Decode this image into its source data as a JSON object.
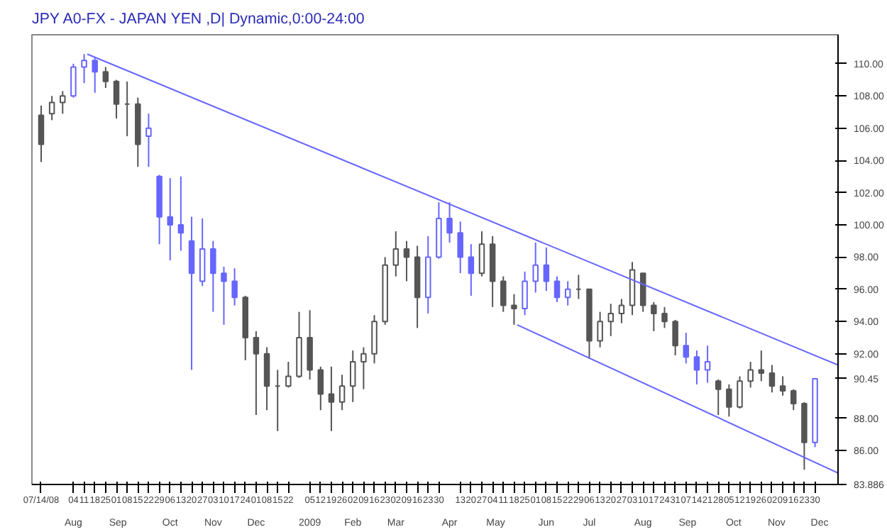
{
  "chart_data": {
    "type": "candlestick",
    "title": "JPY A0-FX - JAPAN YEN ,D| Dynamic,0:00-24:00",
    "x": [
      "2008-07-14",
      "2008-07-21",
      "2008-07-28",
      "2008-08-04",
      "2008-08-11",
      "2008-08-18",
      "2008-08-25",
      "2008-09-01",
      "2008-09-08",
      "2008-09-15",
      "2008-09-22",
      "2008-09-29",
      "2008-10-06",
      "2008-10-13",
      "2008-10-20",
      "2008-10-27",
      "2008-11-03",
      "2008-11-10",
      "2008-11-17",
      "2008-11-24",
      "2008-12-01",
      "2008-12-08",
      "2008-12-15",
      "2008-12-22",
      "2008-12-29",
      "2009-01-05",
      "2009-01-12",
      "2009-01-19",
      "2009-01-26",
      "2009-02-02",
      "2009-02-09",
      "2009-02-16",
      "2009-02-23",
      "2009-03-02",
      "2009-03-09",
      "2009-03-16",
      "2009-03-23",
      "2009-03-30",
      "2009-04-06",
      "2009-04-13",
      "2009-04-20",
      "2009-04-27",
      "2009-05-04",
      "2009-05-11",
      "2009-05-18",
      "2009-05-25",
      "2009-06-01",
      "2009-06-08",
      "2009-06-15",
      "2009-06-22",
      "2009-06-29",
      "2009-07-06",
      "2009-07-13",
      "2009-07-20",
      "2009-07-27",
      "2009-08-03",
      "2009-08-10",
      "2009-08-17",
      "2009-08-24",
      "2009-08-31",
      "2009-09-07",
      "2009-09-14",
      "2009-09-21",
      "2009-09-28",
      "2009-10-05",
      "2009-10-12",
      "2009-10-19",
      "2009-10-26",
      "2009-11-02",
      "2009-11-09",
      "2009-11-16",
      "2009-11-23",
      "2009-11-30"
    ],
    "ohlc": [
      [
        106.8,
        107.4,
        103.9,
        105.0
      ],
      [
        106.9,
        108.0,
        106.5,
        107.6
      ],
      [
        107.6,
        108.3,
        106.9,
        108.0
      ],
      [
        108.0,
        110.0,
        107.9,
        109.8
      ],
      [
        109.8,
        110.6,
        108.8,
        110.2
      ],
      [
        110.2,
        110.4,
        108.2,
        109.5
      ],
      [
        109.5,
        109.8,
        108.5,
        108.9
      ],
      [
        108.9,
        109.0,
        106.6,
        107.5
      ],
      [
        107.5,
        108.9,
        105.5,
        107.5
      ],
      [
        107.5,
        107.9,
        103.6,
        105.0
      ],
      [
        105.5,
        106.9,
        103.6,
        106.0
      ],
      [
        103.0,
        103.1,
        98.8,
        100.5
      ],
      [
        100.5,
        102.9,
        97.8,
        100.0
      ],
      [
        100.0,
        103.0,
        98.4,
        99.5
      ],
      [
        99.0,
        100.5,
        91.0,
        97.0
      ],
      [
        96.5,
        100.4,
        96.2,
        98.5
      ],
      [
        98.5,
        99.0,
        94.6,
        97.0
      ],
      [
        97.0,
        97.4,
        93.8,
        96.5
      ],
      [
        96.5,
        97.3,
        95.0,
        95.5
      ],
      [
        95.5,
        95.6,
        91.6,
        93.0
      ],
      [
        93.0,
        93.4,
        88.2,
        92.0
      ],
      [
        92.0,
        92.4,
        88.5,
        90.0
      ],
      [
        90.0,
        91.0,
        87.2,
        90.0
      ],
      [
        90.0,
        91.5,
        89.9,
        90.6
      ],
      [
        90.6,
        94.6,
        90.5,
        93.0
      ],
      [
        93.0,
        94.7,
        90.4,
        91.0
      ],
      [
        91.0,
        91.2,
        88.5,
        89.5
      ],
      [
        89.5,
        91.2,
        87.2,
        89.0
      ],
      [
        89.0,
        90.7,
        88.5,
        90.0
      ],
      [
        90.0,
        92.2,
        89.0,
        91.5
      ],
      [
        91.5,
        92.4,
        89.8,
        92.0
      ],
      [
        92.0,
        94.4,
        91.4,
        94.0
      ],
      [
        94.0,
        98.0,
        93.8,
        97.5
      ],
      [
        97.5,
        99.6,
        96.8,
        98.5
      ],
      [
        98.5,
        99.0,
        96.5,
        98.0
      ],
      [
        98.0,
        98.7,
        93.6,
        95.5
      ],
      [
        95.5,
        99.3,
        94.5,
        98.0
      ],
      [
        98.0,
        101.4,
        97.9,
        100.4
      ],
      [
        100.4,
        101.4,
        98.9,
        99.5
      ],
      [
        99.5,
        100.2,
        97.0,
        98.0
      ],
      [
        98.0,
        98.8,
        95.6,
        97.0
      ],
      [
        97.0,
        99.6,
        96.8,
        98.8
      ],
      [
        98.8,
        99.3,
        94.9,
        96.5
      ],
      [
        96.5,
        96.8,
        94.6,
        95.0
      ],
      [
        95.0,
        95.7,
        93.8,
        94.8
      ],
      [
        94.8,
        97.1,
        94.4,
        96.5
      ],
      [
        96.5,
        98.9,
        95.8,
        97.5
      ],
      [
        97.5,
        98.6,
        95.9,
        96.5
      ],
      [
        96.5,
        96.8,
        95.2,
        95.5
      ],
      [
        95.5,
        96.5,
        95.0,
        96.0
      ],
      [
        96.0,
        96.9,
        95.4,
        96.0
      ],
      [
        96.0,
        96.0,
        91.7,
        92.8
      ],
      [
        92.8,
        94.6,
        92.4,
        94.0
      ],
      [
        94.0,
        95.1,
        93.1,
        94.5
      ],
      [
        94.5,
        95.4,
        93.9,
        95.0
      ],
      [
        95.0,
        97.7,
        94.4,
        97.2
      ],
      [
        97.0,
        97.0,
        94.6,
        95.0
      ],
      [
        95.0,
        95.2,
        93.4,
        94.5
      ],
      [
        94.5,
        94.9,
        93.6,
        94.0
      ],
      [
        94.0,
        94.1,
        91.9,
        92.5
      ],
      [
        92.5,
        93.3,
        91.4,
        91.8
      ],
      [
        91.8,
        92.2,
        90.1,
        91.0
      ],
      [
        91.0,
        92.5,
        90.2,
        91.5
      ],
      [
        90.3,
        90.4,
        88.2,
        89.8
      ],
      [
        89.8,
        90.1,
        88.1,
        88.7
      ],
      [
        88.7,
        90.6,
        88.6,
        90.3
      ],
      [
        90.3,
        91.5,
        89.9,
        91.0
      ],
      [
        91.0,
        92.2,
        90.3,
        90.8
      ],
      [
        90.8,
        91.3,
        89.6,
        90.0
      ],
      [
        90.0,
        90.6,
        89.4,
        89.7
      ],
      [
        89.7,
        89.8,
        88.5,
        88.9
      ],
      [
        88.9,
        89.0,
        84.8,
        86.5
      ],
      [
        86.5,
        90.5,
        86.2,
        90.45
      ]
    ],
    "colors": [
      "#555555",
      "#555555",
      "#555555",
      "#6666ff",
      "#6666ff",
      "#6666ff",
      "#555555",
      "#555555",
      "#555555",
      "#555555",
      "#6666ff",
      "#6666ff",
      "#6666ff",
      "#6666ff",
      "#6666ff",
      "#6666ff",
      "#6666ff",
      "#6666ff",
      "#6666ff",
      "#555555",
      "#555555",
      "#555555",
      "#555555",
      "#555555",
      "#555555",
      "#555555",
      "#555555",
      "#555555",
      "#555555",
      "#555555",
      "#555555",
      "#555555",
      "#555555",
      "#555555",
      "#555555",
      "#555555",
      "#6666ff",
      "#6666ff",
      "#6666ff",
      "#6666ff",
      "#6666ff",
      "#555555",
      "#555555",
      "#555555",
      "#555555",
      "#6666ff",
      "#6666ff",
      "#6666ff",
      "#6666ff",
      "#6666ff",
      "#555555",
      "#555555",
      "#555555",
      "#555555",
      "#555555",
      "#555555",
      "#555555",
      "#555555",
      "#555555",
      "#555555",
      "#6666ff",
      "#6666ff",
      "#6666ff",
      "#555555",
      "#555555",
      "#555555",
      "#555555",
      "#555555",
      "#555555",
      "#555555",
      "#555555",
      "#555555",
      "#6666ff"
    ],
    "series": [
      {
        "type": "line",
        "color": "#6666ff",
        "x": [
          "2008-08-13",
          "2009-12-15"
        ],
        "values": [
          110.6,
          91.3
        ]
      },
      {
        "type": "line",
        "color": "#6666ff",
        "x": [
          "2009-05-20",
          "2009-12-15"
        ],
        "values": [
          93.8,
          84.6
        ]
      }
    ],
    "xlim": [
      "2008-07-08",
      "2009-12-15"
    ],
    "xticks": [
      {
        "value": "2008-07-14",
        "label": "07/14/08"
      },
      {
        "value": "2008-08-04",
        "label": "04"
      },
      {
        "value": "2008-08-11",
        "label": "11"
      },
      {
        "value": "2008-08-18",
        "label": "18"
      },
      {
        "value": "2008-08-25",
        "label": "25"
      },
      {
        "value": "2008-09-01",
        "label": "01"
      },
      {
        "value": "2008-09-08",
        "label": "08"
      },
      {
        "value": "2008-09-15",
        "label": "15"
      },
      {
        "value": "2008-09-22",
        "label": "22"
      },
      {
        "value": "2008-09-29",
        "label": "29"
      },
      {
        "value": "2008-10-06",
        "label": "06"
      },
      {
        "value": "2008-10-13",
        "label": "13"
      },
      {
        "value": "2008-10-20",
        "label": "20"
      },
      {
        "value": "2008-10-27",
        "label": "27"
      },
      {
        "value": "2008-11-03",
        "label": "03"
      },
      {
        "value": "2008-11-10",
        "label": "10"
      },
      {
        "value": "2008-11-17",
        "label": "17"
      },
      {
        "value": "2008-11-24",
        "label": "24"
      },
      {
        "value": "2008-12-01",
        "label": "01"
      },
      {
        "value": "2008-12-08",
        "label": "08"
      },
      {
        "value": "2008-12-15",
        "label": "15"
      },
      {
        "value": "2008-12-22",
        "label": "22"
      },
      {
        "value": "2009-01-05",
        "label": "05"
      },
      {
        "value": "2009-01-12",
        "label": "12"
      },
      {
        "value": "2009-01-19",
        "label": "19"
      },
      {
        "value": "2009-01-26",
        "label": "26"
      },
      {
        "value": "2009-02-02",
        "label": "02"
      },
      {
        "value": "2009-02-09",
        "label": "09"
      },
      {
        "value": "2009-02-16",
        "label": "16"
      },
      {
        "value": "2009-02-23",
        "label": "23"
      },
      {
        "value": "2009-03-02",
        "label": "02"
      },
      {
        "value": "2009-03-09",
        "label": "09"
      },
      {
        "value": "2009-03-16",
        "label": "16"
      },
      {
        "value": "2009-03-23",
        "label": "23"
      },
      {
        "value": "2009-03-30",
        "label": "30"
      },
      {
        "value": "2009-04-13",
        "label": "13"
      },
      {
        "value": "2009-04-20",
        "label": "20"
      },
      {
        "value": "2009-04-27",
        "label": "27"
      },
      {
        "value": "2009-05-04",
        "label": "04"
      },
      {
        "value": "2009-05-11",
        "label": "11"
      },
      {
        "value": "2009-05-18",
        "label": "18"
      },
      {
        "value": "2009-05-25",
        "label": "25"
      },
      {
        "value": "2009-06-01",
        "label": "01"
      },
      {
        "value": "2009-06-08",
        "label": "08"
      },
      {
        "value": "2009-06-15",
        "label": "15"
      },
      {
        "value": "2009-06-22",
        "label": "22"
      },
      {
        "value": "2009-06-29",
        "label": "29"
      },
      {
        "value": "2009-07-06",
        "label": "06"
      },
      {
        "value": "2009-07-13",
        "label": "13"
      },
      {
        "value": "2009-07-20",
        "label": "20"
      },
      {
        "value": "2009-07-27",
        "label": "27"
      },
      {
        "value": "2009-08-03",
        "label": "03"
      },
      {
        "value": "2009-08-10",
        "label": "10"
      },
      {
        "value": "2009-08-17",
        "label": "17"
      },
      {
        "value": "2009-08-24",
        "label": "24"
      },
      {
        "value": "2009-08-31",
        "label": "31"
      },
      {
        "value": "2009-09-07",
        "label": "07"
      },
      {
        "value": "2009-09-14",
        "label": "14"
      },
      {
        "value": "2009-09-21",
        "label": "21"
      },
      {
        "value": "2009-09-28",
        "label": "28"
      },
      {
        "value": "2009-10-05",
        "label": "05"
      },
      {
        "value": "2009-10-12",
        "label": "12"
      },
      {
        "value": "2009-10-19",
        "label": "19"
      },
      {
        "value": "2009-10-26",
        "label": "26"
      },
      {
        "value": "2009-11-02",
        "label": "02"
      },
      {
        "value": "2009-11-09",
        "label": "09"
      },
      {
        "value": "2009-11-16",
        "label": "16"
      },
      {
        "value": "2009-11-23",
        "label": "23"
      },
      {
        "value": "2009-11-30",
        "label": "30"
      }
    ],
    "x2lim": [
      "2008-07-08",
      "2009-12-15"
    ],
    "x2ticks": [
      {
        "value": "2008-08-04",
        "label": "Aug"
      },
      {
        "value": "2008-09-02",
        "label": "Sep"
      },
      {
        "value": "2008-10-06",
        "label": "Oct"
      },
      {
        "value": "2008-11-03",
        "label": "Nov"
      },
      {
        "value": "2008-12-01",
        "label": "Dec"
      },
      {
        "value": "2009-01-05",
        "label": "2009"
      },
      {
        "value": "2009-02-02",
        "label": "Feb"
      },
      {
        "value": "2009-03-02",
        "label": "Mar"
      },
      {
        "value": "2009-04-06",
        "label": "Apr"
      },
      {
        "value": "2009-05-06",
        "label": "May"
      },
      {
        "value": "2009-06-08",
        "label": "Jun"
      },
      {
        "value": "2009-07-06",
        "label": "Jul"
      },
      {
        "value": "2009-08-10",
        "label": "Aug"
      },
      {
        "value": "2009-09-08",
        "label": "Sep"
      },
      {
        "value": "2009-10-08",
        "label": "Oct"
      },
      {
        "value": "2009-11-05",
        "label": "Nov"
      },
      {
        "value": "2009-12-03",
        "label": "Dec"
      }
    ],
    "ylim": [
      83.886,
      111.8
    ],
    "yticks": [
      {
        "value": 83.886,
        "label": "83.886"
      },
      {
        "value": 86,
        "label": "86.00"
      },
      {
        "value": 88,
        "label": "88.00"
      },
      {
        "value": 90.45,
        "label": "90.45"
      },
      {
        "value": 92,
        "label": "92.00"
      },
      {
        "value": 94,
        "label": "94.00"
      },
      {
        "value": 96,
        "label": "96.00"
      },
      {
        "value": 98,
        "label": "98.00"
      },
      {
        "value": 100,
        "label": "100.00"
      },
      {
        "value": 102,
        "label": "102.00"
      },
      {
        "value": 104,
        "label": "104.00"
      },
      {
        "value": 106,
        "label": "106.00"
      },
      {
        "value": 108,
        "label": "108.00"
      },
      {
        "value": 110,
        "label": "110.00"
      }
    ],
    "grid": false
  }
}
